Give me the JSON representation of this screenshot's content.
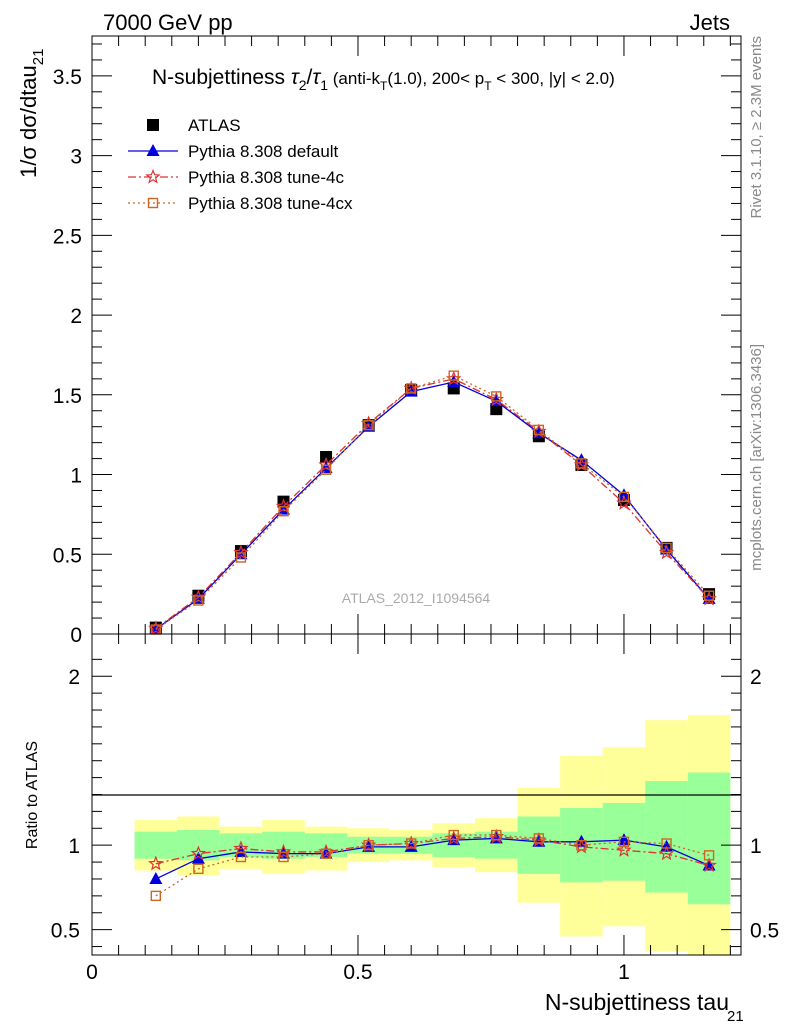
{
  "header": {
    "left": "7000 GeV pp",
    "right": "Jets"
  },
  "side_labels": {
    "rivet": "Rivet 3.1.10, ≥ 2.3M events",
    "mcplots": "mcplots.cern.ch [arXiv:1306.3436]"
  },
  "chart_data": [
    {
      "type": "scatter",
      "title": "N-subjettiness τ₂/τ₁ (anti-k_T(1.0), 200< p_T < 300, |y| < 2.0)",
      "ylabel": "1/σ dσ/dtau_21",
      "watermark": "ATLAS_2012_I1094564",
      "xlim": [
        0,
        1.22
      ],
      "ylim": [
        0,
        3.75
      ],
      "x_ticks": [
        "0",
        "0.5",
        "1"
      ],
      "y_ticks": [
        "0",
        "0.5",
        "1",
        "1.5",
        "2",
        "2.5",
        "3",
        "3.5"
      ],
      "x": [
        0.12,
        0.2,
        0.28,
        0.36,
        0.44,
        0.52,
        0.6,
        0.68,
        0.76,
        0.84,
        0.92,
        1.0,
        1.08,
        1.16
      ],
      "series": [
        {
          "name": "ATLAS",
          "color": "#000000",
          "marker": "square",
          "values": [
            0.04,
            0.24,
            0.52,
            0.83,
            1.11,
            1.31,
            1.53,
            1.54,
            1.41,
            1.24,
            1.06,
            0.84,
            0.54,
            0.25
          ]
        },
        {
          "name": "Pythia 8.308 default",
          "color": "#0000dd",
          "marker": "triangle",
          "dash": "",
          "values": [
            0.03,
            0.22,
            0.5,
            0.78,
            1.04,
            1.3,
            1.52,
            1.58,
            1.46,
            1.26,
            1.09,
            0.87,
            0.53,
            0.22
          ]
        },
        {
          "name": "Pythia 8.308 tune-4c",
          "color": "#dd3333",
          "marker": "star",
          "dash": "8,3,2,3",
          "values": [
            0.035,
            0.23,
            0.51,
            0.8,
            1.06,
            1.32,
            1.54,
            1.6,
            1.47,
            1.27,
            1.06,
            0.82,
            0.51,
            0.22
          ]
        },
        {
          "name": "Pythia 8.308 tune-4cx",
          "color": "#cc6622",
          "marker": "open-square",
          "dash": "2,3",
          "values": [
            0.028,
            0.21,
            0.48,
            0.77,
            1.03,
            1.31,
            1.54,
            1.62,
            1.49,
            1.28,
            1.07,
            0.86,
            0.54,
            0.24
          ]
        }
      ]
    },
    {
      "type": "line",
      "ylabel": "Ratio to ATLAS",
      "xlabel": "N-subjettiness tau_21",
      "xlim": [
        0,
        1.22
      ],
      "ylim": [
        0.35,
        2.25
      ],
      "y_ticks": [
        "0.5",
        "1",
        "2"
      ],
      "x_ticks": [
        "0",
        "0.5",
        "1"
      ],
      "bands": {
        "bin_edges": [
          0.08,
          0.16,
          0.24,
          0.32,
          0.4,
          0.48,
          0.56,
          0.64,
          0.72,
          0.8,
          0.88,
          0.96,
          1.04,
          1.12,
          1.2
        ],
        "green_lo": [
          0.92,
          0.91,
          0.93,
          0.92,
          0.93,
          0.95,
          0.95,
          0.93,
          0.92,
          0.83,
          0.78,
          0.79,
          0.72,
          0.65
        ],
        "green_hi": [
          1.08,
          1.09,
          1.07,
          1.08,
          1.07,
          1.05,
          1.05,
          1.07,
          1.08,
          1.17,
          1.22,
          1.25,
          1.38,
          1.43
        ],
        "yellow_lo": [
          0.85,
          0.82,
          0.86,
          0.83,
          0.85,
          0.9,
          0.91,
          0.87,
          0.84,
          0.66,
          0.46,
          0.52,
          0.37,
          0.35
        ],
        "yellow_hi": [
          1.15,
          1.17,
          1.11,
          1.15,
          1.11,
          1.1,
          1.09,
          1.13,
          1.16,
          1.34,
          1.53,
          1.58,
          1.74,
          1.77
        ]
      },
      "series": [
        {
          "name": "Pythia 8.308 default",
          "values": [
            0.8,
            0.92,
            0.96,
            0.95,
            0.95,
            0.99,
            0.99,
            1.03,
            1.04,
            1.02,
            1.02,
            1.03,
            0.99,
            0.88
          ]
        },
        {
          "name": "Pythia 8.308 tune-4c",
          "values": [
            0.89,
            0.95,
            0.98,
            0.96,
            0.96,
            1.0,
            1.01,
            1.04,
            1.05,
            1.03,
            0.99,
            0.97,
            0.95,
            0.88
          ]
        },
        {
          "name": "Pythia 8.308 tune-4cx",
          "values": [
            0.7,
            0.86,
            0.93,
            0.93,
            0.95,
            1.0,
            1.01,
            1.06,
            1.06,
            1.04,
            1.0,
            1.02,
            1.01,
            0.94
          ]
        }
      ]
    }
  ]
}
